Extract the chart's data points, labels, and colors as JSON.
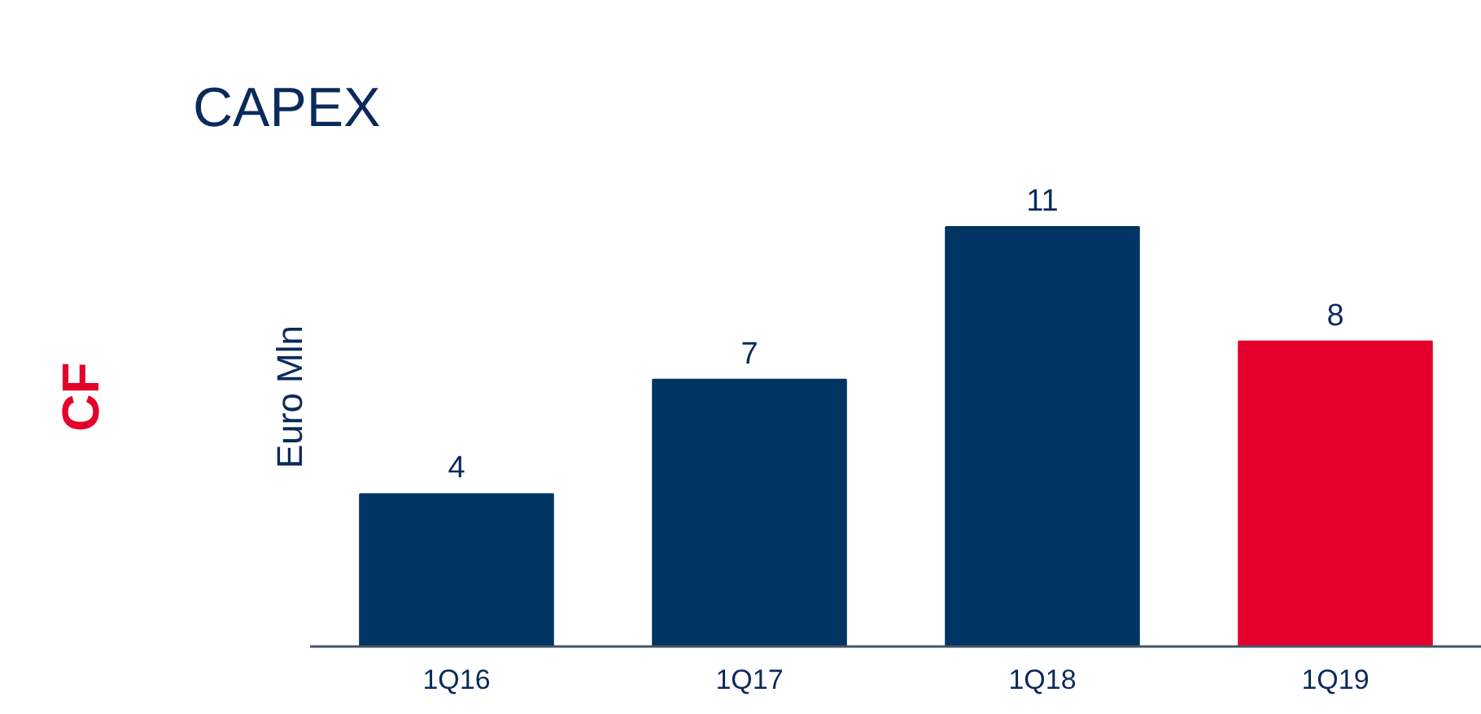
{
  "chart_data": {
    "type": "bar",
    "title": "CAPEX",
    "ylabel": "Euro Mln",
    "categories": [
      "1Q16",
      "1Q17",
      "1Q18",
      "1Q19"
    ],
    "values": [
      4,
      7,
      11,
      8
    ],
    "colors": [
      "#003462",
      "#003462",
      "#003462",
      "#e4002b"
    ],
    "data_labels": true,
    "annotations": [
      "CF"
    ]
  }
}
